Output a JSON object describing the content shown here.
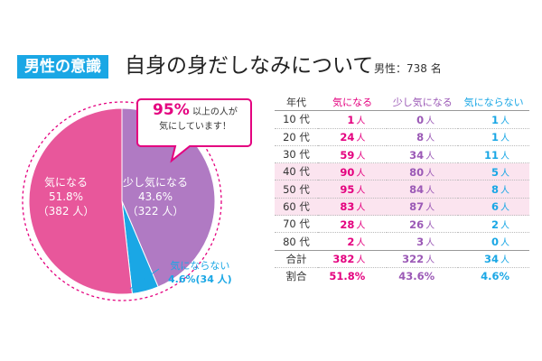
{
  "header": {
    "tag": "男性の意識",
    "title": "自身の身だしなみについて",
    "sample_label": "男性：",
    "sample_count": "738",
    "sample_unit": "名"
  },
  "callout": {
    "percent": "95%",
    "line1_rest": "以上の人が",
    "line2": "気にしています！"
  },
  "pie_labels": {
    "care": {
      "name": "気になる",
      "pct": "51.8%",
      "count": "（382 人）"
    },
    "some": {
      "name": "少し気になる",
      "pct": "43.6%",
      "count": "（322 人）"
    },
    "not": {
      "name": "気にならない",
      "pct": "4.6%",
      "count": "(34 人)"
    }
  },
  "table": {
    "headers": [
      "年代",
      "気になる",
      "少し気になる",
      "気にならない"
    ],
    "unit": "人",
    "rows": [
      {
        "age": "10 代",
        "v": [
          "1",
          "0",
          "1"
        ]
      },
      {
        "age": "20 代",
        "v": [
          "24",
          "8",
          "1"
        ]
      },
      {
        "age": "30 代",
        "v": [
          "59",
          "34",
          "11"
        ]
      },
      {
        "age": "40 代",
        "v": [
          "90",
          "80",
          "5"
        ]
      },
      {
        "age": "50 代",
        "v": [
          "95",
          "84",
          "8"
        ]
      },
      {
        "age": "60 代",
        "v": [
          "83",
          "87",
          "6"
        ]
      },
      {
        "age": "70 代",
        "v": [
          "28",
          "26",
          "2"
        ]
      },
      {
        "age": "80 代",
        "v": [
          "2",
          "3",
          "0"
        ]
      }
    ],
    "total": {
      "label": "合計",
      "v": [
        "382",
        "322",
        "34"
      ]
    },
    "ratio": {
      "label": "割合",
      "v": [
        "51.8%",
        "43.6%",
        "4.6%"
      ]
    },
    "highlighted_ages": [
      "40 代",
      "50 代",
      "60 代"
    ]
  },
  "colors": {
    "care": "#e8579b",
    "some": "#b07ac3",
    "not": "#1aa7e5",
    "accent": "#e4007f",
    "dashed": "#e4007f"
  },
  "chart_data": {
    "type": "pie",
    "title": "自身の身だしなみについて",
    "labels": [
      "気になる",
      "少し気になる",
      "気にならない"
    ],
    "values": [
      382,
      322,
      34
    ],
    "percent": [
      51.8,
      43.6,
      4.6
    ],
    "total": 738
  }
}
